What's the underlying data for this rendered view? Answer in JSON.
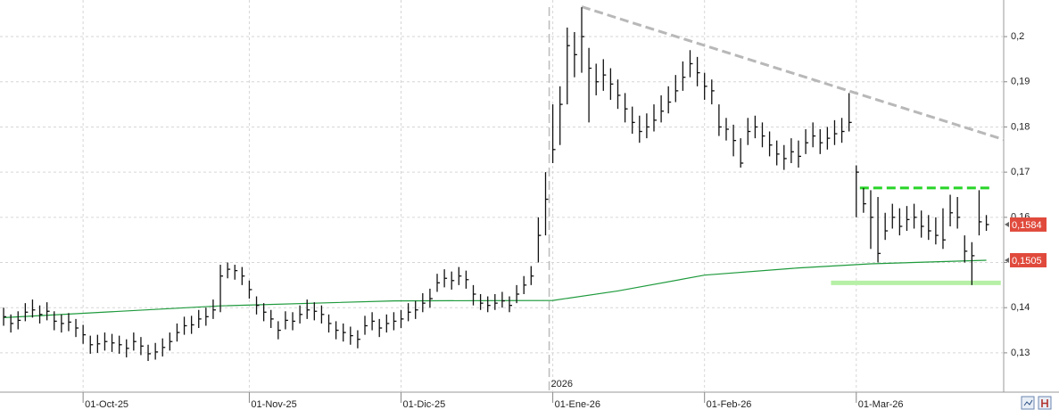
{
  "chart_data": {
    "type": "ohlc",
    "xlim": [
      -0.5,
      138.4
    ],
    "ylim": [
      0.1213,
      0.2081
    ],
    "yticks": [
      {
        "value": 0.13,
        "label": "0,13"
      },
      {
        "value": 0.14,
        "label": "0,14"
      },
      {
        "value": 0.15,
        "label": "0,15"
      },
      {
        "value": 0.16,
        "label": "0,16"
      },
      {
        "value": 0.17,
        "label": "0,17"
      },
      {
        "value": 0.18,
        "label": "0,18"
      },
      {
        "value": 0.19,
        "label": "0,19"
      },
      {
        "value": 0.2,
        "label": "0,2"
      }
    ],
    "xticks": [
      {
        "value": 11,
        "label": "01-Oct-25"
      },
      {
        "value": 34,
        "label": "01-Nov-25"
      },
      {
        "value": 55,
        "label": "01-Dic-25"
      },
      {
        "value": 76,
        "label": "01-Ene-26"
      },
      {
        "value": 97,
        "label": "01-Feb-26"
      },
      {
        "value": 118,
        "label": "01-Mar-26"
      }
    ],
    "grid": true,
    "color": "#111111",
    "high": [
      0.14,
      0.1385,
      0.1392,
      0.141,
      0.1418,
      0.1405,
      0.1412,
      0.1392,
      0.1385,
      0.1388,
      0.1375,
      0.1362,
      0.1338,
      0.134,
      0.1345,
      0.1342,
      0.1338,
      0.133,
      0.1345,
      0.1335,
      0.1318,
      0.1322,
      0.1332,
      0.1345,
      0.1365,
      0.138,
      0.1382,
      0.1395,
      0.14,
      0.1418,
      0.1495,
      0.15,
      0.1495,
      0.149,
      0.146,
      0.1425,
      0.141,
      0.1395,
      0.137,
      0.1392,
      0.139,
      0.1405,
      0.1418,
      0.1412,
      0.1405,
      0.1385,
      0.137,
      0.1365,
      0.1358,
      0.135,
      0.1382,
      0.139,
      0.1375,
      0.1385,
      0.139,
      0.1395,
      0.141,
      0.1415,
      0.1432,
      0.1442,
      0.1475,
      0.1485,
      0.148,
      0.149,
      0.1482,
      0.145,
      0.143,
      0.1425,
      0.143,
      0.1435,
      0.1425,
      0.145,
      0.147,
      0.1492,
      0.16,
      0.17,
      0.185,
      0.189,
      0.202,
      0.201,
      0.2065,
      0.1975,
      0.194,
      0.195,
      0.193,
      0.1905,
      0.1875,
      0.1845,
      0.1825,
      0.183,
      0.185,
      0.187,
      0.189,
      0.1915,
      0.1945,
      0.197,
      0.1955,
      0.192,
      0.1905,
      0.185,
      0.182,
      0.1805,
      0.1775,
      0.182,
      0.1825,
      0.181,
      0.179,
      0.177,
      0.176,
      0.1775,
      0.177,
      0.1795,
      0.181,
      0.1795,
      0.18,
      0.1815,
      0.182,
      0.1875,
      0.1715,
      0.1665,
      0.166,
      0.1645,
      0.161,
      0.163,
      0.162,
      0.1625,
      0.163,
      0.1615,
      0.1605,
      0.16,
      0.162,
      0.165,
      0.1645,
      0.156,
      0.1545,
      0.166,
      0.1605
    ],
    "low": [
      0.136,
      0.1345,
      0.1352,
      0.137,
      0.1378,
      0.1365,
      0.1372,
      0.135,
      0.1345,
      0.1348,
      0.1335,
      0.132,
      0.1298,
      0.13,
      0.1305,
      0.1302,
      0.1298,
      0.129,
      0.1305,
      0.1295,
      0.1282,
      0.1285,
      0.1292,
      0.1305,
      0.1325,
      0.134,
      0.1342,
      0.1355,
      0.136,
      0.1375,
      0.139,
      0.1465,
      0.1462,
      0.145,
      0.142,
      0.1385,
      0.137,
      0.1355,
      0.133,
      0.1352,
      0.135,
      0.1365,
      0.1375,
      0.1372,
      0.1365,
      0.1345,
      0.133,
      0.1325,
      0.1318,
      0.131,
      0.134,
      0.135,
      0.1335,
      0.1345,
      0.135,
      0.1355,
      0.137,
      0.1375,
      0.139,
      0.14,
      0.1435,
      0.1445,
      0.144,
      0.145,
      0.1442,
      0.1405,
      0.1395,
      0.139,
      0.1395,
      0.14,
      0.139,
      0.141,
      0.143,
      0.145,
      0.15,
      0.156,
      0.172,
      0.176,
      0.185,
      0.191,
      0.192,
      0.181,
      0.187,
      0.188,
      0.186,
      0.184,
      0.181,
      0.1785,
      0.1765,
      0.1775,
      0.179,
      0.181,
      0.183,
      0.1855,
      0.188,
      0.191,
      0.189,
      0.186,
      0.185,
      0.178,
      0.177,
      0.1735,
      0.171,
      0.176,
      0.1775,
      0.1755,
      0.1735,
      0.1715,
      0.1705,
      0.172,
      0.171,
      0.174,
      0.1755,
      0.174,
      0.175,
      0.176,
      0.1765,
      0.179,
      0.16,
      0.161,
      0.153,
      0.15,
      0.155,
      0.1575,
      0.156,
      0.157,
      0.1575,
      0.1555,
      0.155,
      0.154,
      0.153,
      0.158,
      0.1575,
      0.15,
      0.145,
      0.156,
      0.157
    ],
    "close": [
      0.138,
      0.1365,
      0.1372,
      0.139,
      0.1395,
      0.1385,
      0.1392,
      0.137,
      0.1365,
      0.1368,
      0.1355,
      0.134,
      0.1318,
      0.132,
      0.1325,
      0.1322,
      0.1318,
      0.131,
      0.1325,
      0.1315,
      0.1298,
      0.1302,
      0.1312,
      0.1325,
      0.1345,
      0.136,
      0.1362,
      0.1375,
      0.138,
      0.1395,
      0.147,
      0.1485,
      0.1482,
      0.147,
      0.144,
      0.1405,
      0.139,
      0.1375,
      0.135,
      0.1372,
      0.137,
      0.1385,
      0.1395,
      0.1392,
      0.1385,
      0.1365,
      0.135,
      0.1345,
      0.1338,
      0.133,
      0.136,
      0.137,
      0.1355,
      0.1365,
      0.137,
      0.1375,
      0.139,
      0.1395,
      0.141,
      0.142,
      0.1455,
      0.1465,
      0.146,
      0.147,
      0.1462,
      0.143,
      0.141,
      0.1405,
      0.141,
      0.1415,
      0.1405,
      0.143,
      0.145,
      0.147,
      0.156,
      0.164,
      0.175,
      0.185,
      0.198,
      0.196,
      0.2,
      0.193,
      0.19,
      0.1915,
      0.1895,
      0.187,
      0.184,
      0.181,
      0.179,
      0.18,
      0.1815,
      0.1835,
      0.1855,
      0.188,
      0.191,
      0.194,
      0.192,
      0.189,
      0.188,
      0.18,
      0.1795,
      0.177,
      0.172,
      0.179,
      0.18,
      0.178,
      0.176,
      0.174,
      0.173,
      0.1745,
      0.1735,
      0.1765,
      0.178,
      0.1765,
      0.1775,
      0.1785,
      0.179,
      0.181,
      0.17,
      0.163,
      0.16,
      0.152,
      0.157,
      0.16,
      0.158,
      0.1595,
      0.16,
      0.158,
      0.157,
      0.156,
      0.155,
      0.161,
      0.16,
      0.1525,
      0.1515,
      0.159,
      0.1584
    ],
    "moving_average": {
      "color": "#1e9a3c",
      "x": [
        0,
        30,
        54,
        76,
        85,
        97,
        110,
        120,
        136
      ],
      "values": [
        0.1378,
        0.1404,
        0.1415,
        0.1416,
        0.1437,
        0.1472,
        0.1488,
        0.1497,
        0.1505
      ]
    },
    "price_tags": [
      {
        "value": 0.1584,
        "label": "0,1584",
        "color": "#e04a3c"
      },
      {
        "value": 0.1505,
        "label": "0,1505",
        "color": "#e04a3c"
      }
    ],
    "lines": [
      {
        "x": [
          80,
          138.4
        ],
        "values": [
          0.2066,
          0.1772
        ],
        "color": "#b8b8b8",
        "dash": true,
        "width": 3
      },
      {
        "x": [
          118.5,
          136.5
        ],
        "values": [
          0.1665,
          0.1665
        ],
        "color": "#27d427",
        "dash": true,
        "width": 3
      },
      {
        "x": [
          114.5,
          138
        ],
        "values": [
          0.1455,
          0.1455
        ],
        "color": "#b6f0a6",
        "dash": false,
        "width": 5
      }
    ],
    "year_marker": {
      "x": 75.5,
      "label": "2026"
    }
  }
}
